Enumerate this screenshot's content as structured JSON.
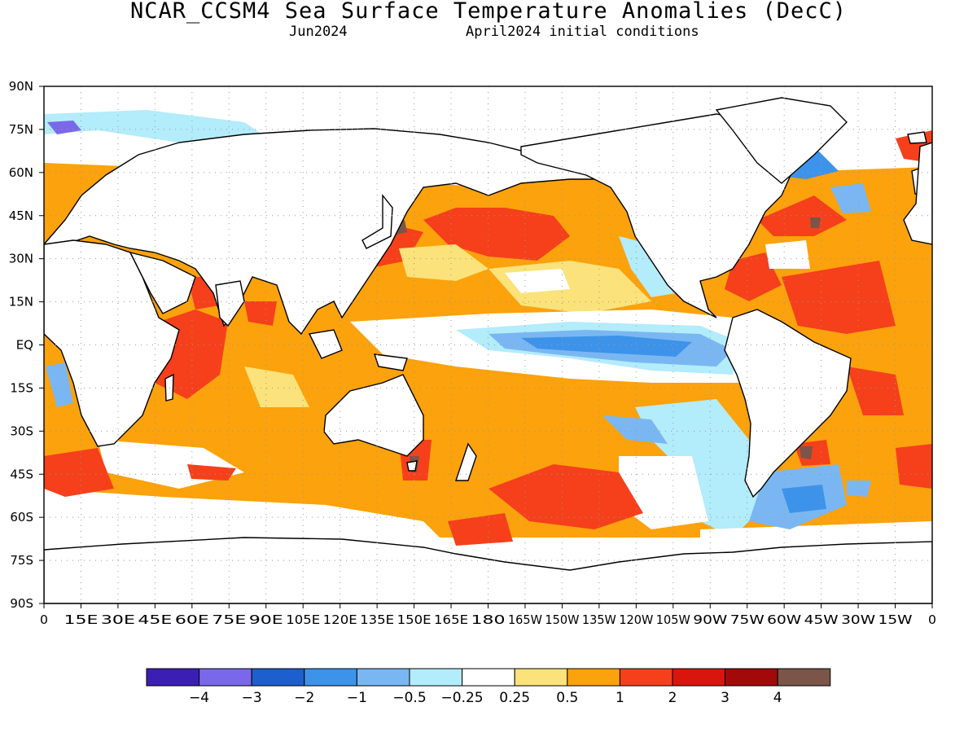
{
  "title": "NCAR_CCSM4 Sea Surface Temperature Anomalies (DecC)",
  "subtitle_left": "Jun2024",
  "subtitle_right": "April2024 initial conditions",
  "map": {
    "lat_labels": [
      "90N",
      "75N",
      "60N",
      "45N",
      "30N",
      "15N",
      "EQ",
      "15S",
      "30S",
      "45S",
      "60S",
      "75S",
      "90S"
    ],
    "lon_labels": [
      "0",
      "15E",
      "30E",
      "45E",
      "60E",
      "75E",
      "90E",
      "105E",
      "120E",
      "135E",
      "150E",
      "165E",
      "180",
      "165W",
      "150W",
      "135W",
      "120W",
      "105W",
      "90W",
      "75W",
      "60W",
      "45W",
      "30W",
      "15W",
      "0"
    ],
    "lat_range": [
      -90,
      90
    ],
    "lon_range": [
      0,
      360
    ],
    "gridlines": "dotted"
  },
  "colorbar": {
    "colors": [
      "#3b1fb5",
      "#7a68ea",
      "#1d5fcc",
      "#3d93ea",
      "#7ab7f2",
      "#b3ecfb",
      "#ffffff",
      "#fce27a",
      "#fba20c",
      "#f5401b",
      "#d9150f",
      "#a20a0a",
      "#7a5548"
    ],
    "labels": [
      "−4",
      "−3",
      "−2",
      "−1",
      "−0.5",
      "−0.25",
      "0.25",
      "0.5",
      "1",
      "2",
      "3",
      "4"
    ]
  }
}
